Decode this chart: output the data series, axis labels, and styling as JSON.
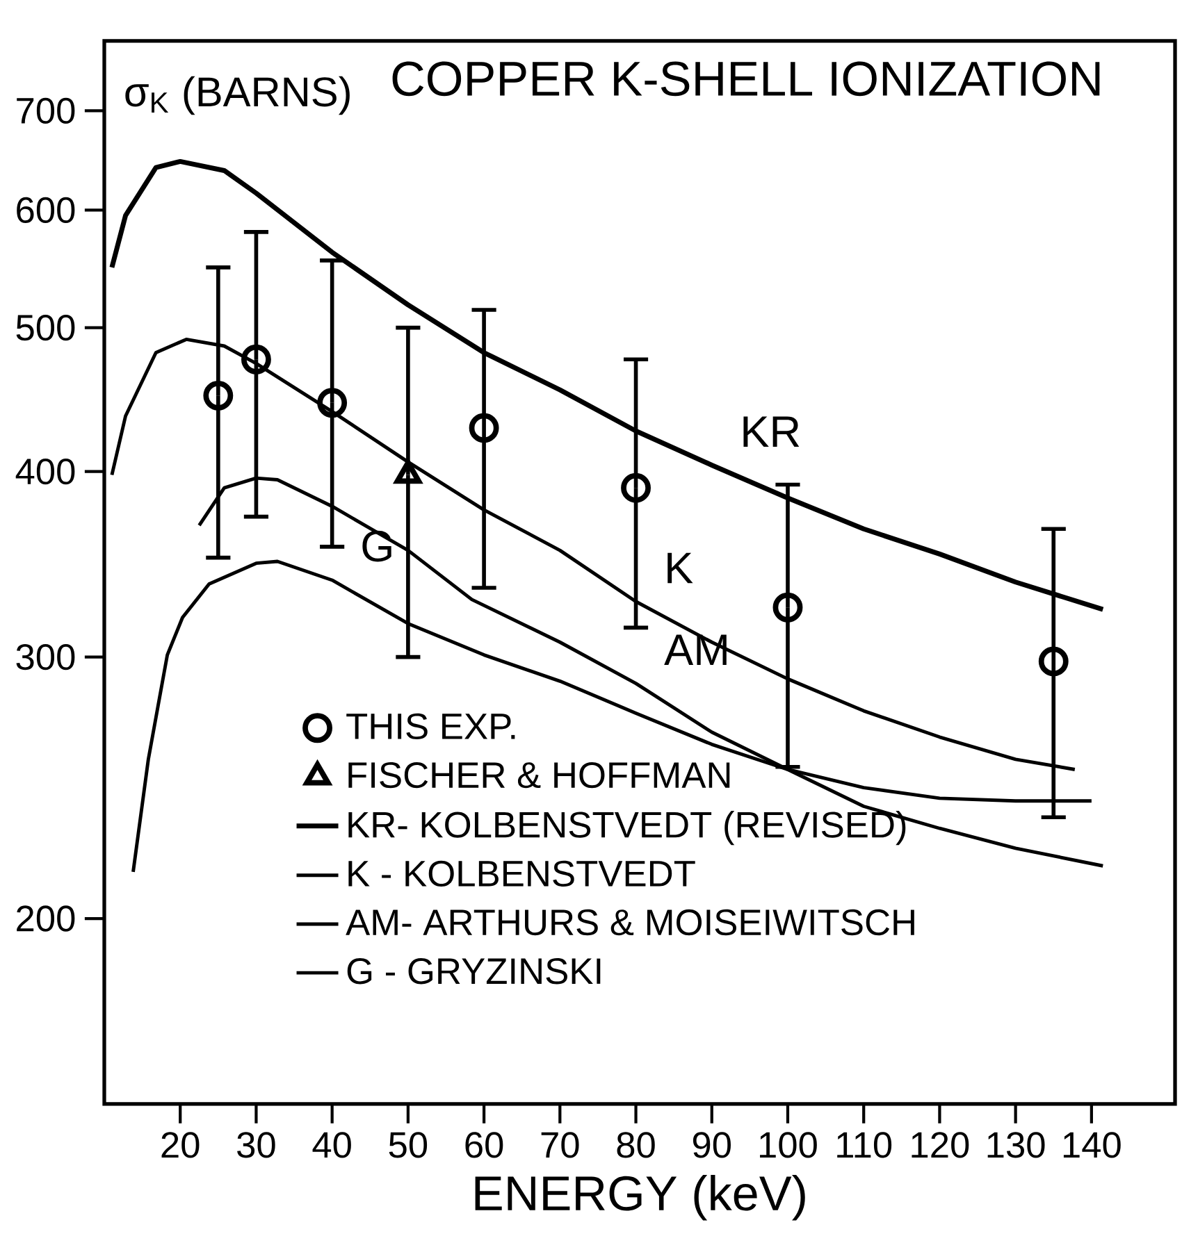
{
  "chart_data": {
    "type": "line",
    "title": "COPPER K-SHELL IONIZATION",
    "xlabel": "ENERGY (keV)",
    "ylabel": "σ$_{K}$ (BARNS)",
    "log": "y",
    "grid": false,
    "legend": "bottom left",
    "xlim": [
      10,
      151
    ],
    "xticks": [
      20,
      30,
      40,
      50,
      60,
      70,
      80,
      90,
      100,
      110,
      120,
      130,
      140
    ],
    "ylim": [
      150,
      780
    ],
    "yticks": [
      200,
      300,
      400,
      500,
      600,
      700
    ],
    "series": [
      {
        "name": "THIS EXP.",
        "type": "scatter",
        "marker": "circle",
        "color": "#000000",
        "x": [
          25,
          30,
          40,
          60,
          80,
          100,
          135
        ],
        "values": [
          450,
          476,
          445,
          428,
          390,
          324,
          298
        ],
        "errors": [
          [
            350,
            549
          ],
          [
            373,
            580
          ],
          [
            356,
            555
          ],
          [
            334,
            514
          ],
          [
            314,
            476
          ],
          [
            253,
            392
          ],
          [
            234,
            366
          ]
        ]
      },
      {
        "name": "FISCHER & HOFFMAN",
        "type": "scatter",
        "marker": "triangle",
        "color": "#000000",
        "x": [
          50
        ],
        "values": [
          398
        ],
        "errors": [
          [
            300,
            500
          ]
        ]
      },
      {
        "name": "KR- KOLBENSTVEDT (REVISED)",
        "color": "#000000",
        "x": [
          11,
          12.8,
          16.8,
          20,
          25.8,
          30,
          40,
          50,
          60,
          70,
          80,
          90,
          100,
          110,
          120,
          130,
          141.5
        ],
        "values": [
          549,
          595,
          641,
          647,
          638,
          616,
          562,
          518,
          481,
          454,
          426,
          404,
          384,
          366,
          352,
          337,
          323
        ]
      },
      {
        "name": "K - KOLBENSTVEDT",
        "color": "#000000",
        "x": [
          11,
          12.8,
          16.8,
          20.8,
          25.8,
          30,
          40,
          50,
          60,
          70,
          80,
          90,
          100,
          110,
          120,
          130,
          137.8
        ],
        "values": [
          398,
          436,
          481,
          491,
          486,
          473,
          439,
          406,
          377,
          354,
          327,
          307,
          290,
          276,
          265,
          256,
          252
        ]
      },
      {
        "name": "AM- ARTHURS & MOISEIWITSCH",
        "color": "#000000",
        "x": [
          22.5,
          25.8,
          30,
          32.8,
          40,
          50,
          58.4,
          70,
          80,
          90,
          100,
          110,
          120,
          130,
          140
        ],
        "values": [
          368,
          390,
          396,
          395,
          379,
          354,
          328,
          307,
          288,
          267,
          252,
          245,
          241,
          240,
          240
        ]
      },
      {
        "name": "G - GRYZINSKI",
        "color": "#000000",
        "x": [
          13.8,
          15.8,
          18.3,
          20.3,
          23.8,
          30,
          32.8,
          40,
          50,
          60,
          70,
          80,
          90,
          100,
          110,
          120,
          130,
          141.5
        ],
        "values": [
          215,
          256,
          301,
          319,
          336,
          347,
          348,
          338,
          316,
          301,
          289,
          275,
          262,
          252,
          238,
          230,
          223,
          217
        ]
      }
    ],
    "annotations": [
      {
        "text": "KR",
        "x": 90,
        "y": 404
      },
      {
        "text": "K",
        "x": 80,
        "y": 327
      },
      {
        "text": "AM",
        "x": 80,
        "y": 288
      },
      {
        "text": "G",
        "x": 40,
        "y": 338
      }
    ]
  }
}
